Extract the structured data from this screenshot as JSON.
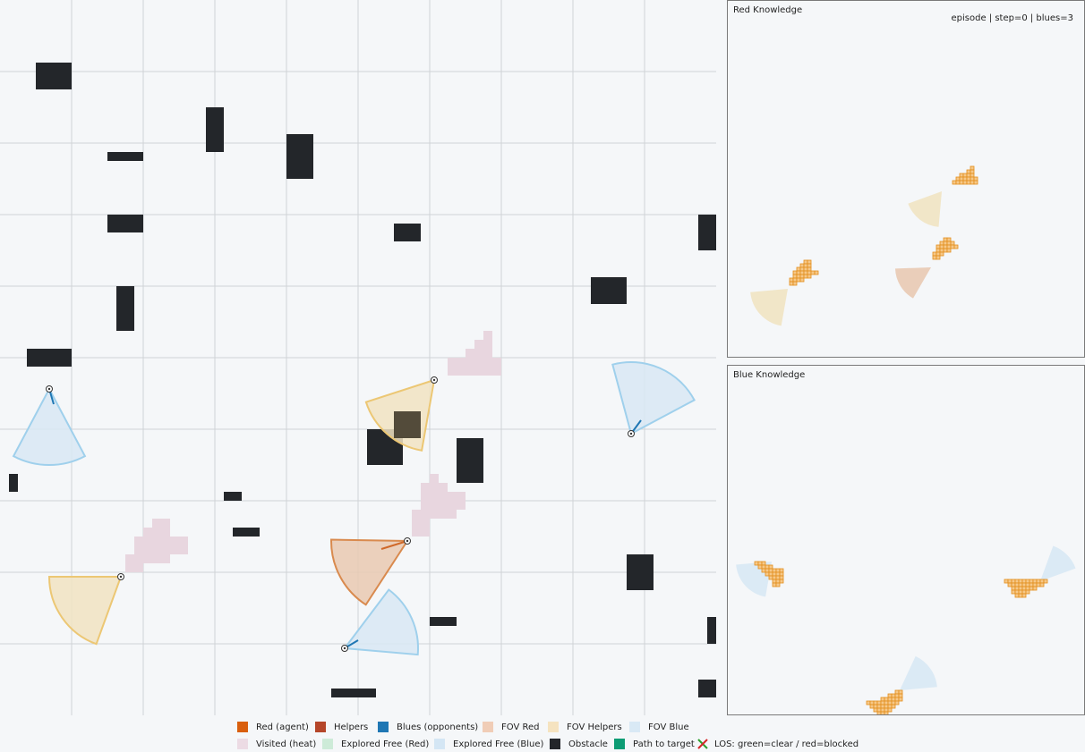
{
  "colors": {
    "grid_bg": "#f5f7f9",
    "grid_line": "#d0d3d6",
    "obstacle": "#23262a",
    "visited": "#e8d6df",
    "fov_red_fill": "#e9c9b2",
    "fov_red_stroke": "#d98a4e",
    "fov_helper_fill": "#f1e3c2",
    "fov_helper_stroke": "#ecc774",
    "fov_blue_fill": "#d8e8f4",
    "fov_blue_stroke": "#9fd0ec",
    "heading_red": "#d0692a",
    "heading_blue": "#1f77b4",
    "known_cell_fill": "#f6c888",
    "known_cell_stroke": "#e38e1c"
  },
  "red_panel": {
    "title": "Red Knowledge",
    "status": "episode | step=0 | blues=3"
  },
  "blue_panel": {
    "title": "Blue Knowledge"
  },
  "legend": {
    "row1": [
      {
        "label": "Red (agent)",
        "color": "#d95f0e",
        "icon": "square-swatch"
      },
      {
        "label": "Helpers",
        "color": "#b5462a",
        "icon": "square-swatch"
      },
      {
        "label": "Blues (opponents)",
        "color": "#1f77b4",
        "icon": "square-swatch"
      },
      {
        "label": "FOV Red",
        "color": "#f0cdb7",
        "icon": "square-swatch"
      },
      {
        "label": "FOV Helpers",
        "color": "#f5e3c0",
        "icon": "square-swatch"
      },
      {
        "label": "FOV Blue",
        "color": "#d9e9f5",
        "icon": "square-swatch"
      }
    ],
    "row2": [
      {
        "label": "Visited (heat)",
        "color": "#ecdbe4",
        "icon": "square-swatch"
      },
      {
        "label": "Explored Free (Red)",
        "color": "#cdebd8",
        "icon": "square-swatch"
      },
      {
        "label": "Explored Free (Blue)",
        "color": "#d4e6f4",
        "icon": "square-swatch"
      },
      {
        "label": "Obstacle",
        "color": "#23262a",
        "icon": "square-swatch"
      },
      {
        "label": "Path to target",
        "color": "#0d9c74",
        "icon": "square-swatch"
      },
      {
        "label": "LOS: green=clear / red=blocked",
        "color": "",
        "icon": "los-cross-icon"
      }
    ]
  }
}
